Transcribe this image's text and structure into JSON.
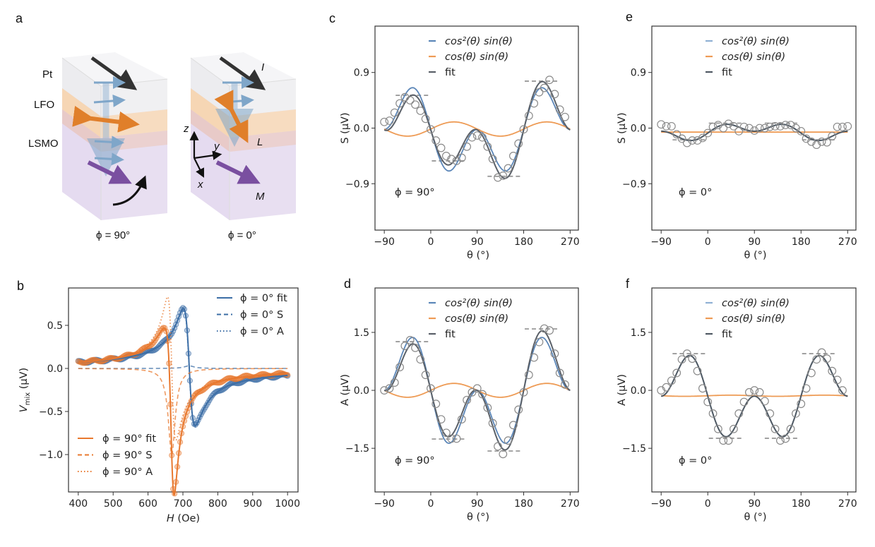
{
  "panel_labels": {
    "a": "a",
    "b": "b",
    "c": "c",
    "d": "d",
    "e": "e",
    "f": "f"
  },
  "schematic": {
    "layers": [
      "Pt",
      "LFO",
      "LSMO"
    ],
    "vector_labels": {
      "current": "I",
      "neel": "L",
      "magnetization": "M"
    },
    "axes_labels": {
      "z": "z",
      "y": "y",
      "x": "x"
    },
    "captions": [
      "ϕ = 90°",
      "ϕ = 0°"
    ],
    "colors": {
      "pt": "#ebebee",
      "lfo": "#f6d6b4",
      "lsmo": "#e2d7ee",
      "current_arrow": "#333333",
      "spin_arrow": "#7fa6c9",
      "neel_arrow": "#e07f2a",
      "magnetization_arrow": "#7a4fa0"
    }
  },
  "chart_data": [
    {
      "panel": "b",
      "type": "line",
      "xlabel": "H (Oe)",
      "xlabel_var": "H",
      "xlabel_unit": "(Oe)",
      "ylabel_var": "V",
      "ylabel_sub": "mix",
      "ylabel_unit": "(μV)",
      "xlim": [
        372,
        1030
      ],
      "ylim": [
        -1.434,
        0.934
      ],
      "xticks": [
        400,
        500,
        600,
        700,
        800,
        900,
        1000
      ],
      "xtick_labels": [
        "400",
        "500",
        "600",
        "700",
        "800",
        "900",
        "1000"
      ],
      "yticks": [
        0.5,
        0.0,
        -0.5,
        -1.0
      ],
      "ytick_labels": [
        "0.5",
        "0.0",
        "−0.5",
        "−1.0"
      ],
      "grid": false,
      "data_h_range": [
        400,
        1000
      ],
      "lineshapes": [
        {
          "phi": "0°",
          "resonance_field": 718,
          "linewidth": 17,
          "symmetric_amplitude": 0.03,
          "antisymmetric_amplitude": -1.36,
          "color": "#3c6ea6"
        },
        {
          "phi": "90°",
          "resonance_field": 668,
          "linewidth": 12,
          "symmetric_amplitude": -1.0,
          "antisymmetric_amplitude": -1.66,
          "color": "#e8782e"
        }
      ],
      "legends": [
        {
          "placement": "top-right",
          "entries": [
            {
              "label": "ϕ = 0° fit",
              "style": "solid",
              "series": 0,
              "part": "fit"
            },
            {
              "label": "ϕ = 0° S",
              "style": "dashed",
              "series": 0,
              "part": "S"
            },
            {
              "label": "ϕ = 0° A",
              "style": "dotted",
              "series": 0,
              "part": "A"
            }
          ]
        },
        {
          "placement": "bottom-left",
          "entries": [
            {
              "label": "ϕ = 90° fit",
              "style": "solid",
              "series": 1,
              "part": "fit"
            },
            {
              "label": "ϕ = 90° S",
              "style": "dashed",
              "series": 1,
              "part": "S"
            },
            {
              "label": "ϕ = 90° A",
              "style": "dotted",
              "series": 1,
              "part": "A"
            }
          ]
        }
      ]
    },
    {
      "panel": "c",
      "type": "line",
      "xlabel": "θ (°)",
      "ylabel": "S (μV)",
      "ylabel_var": "S",
      "annotation": "ϕ = 90°",
      "xlim": [
        -108,
        286
      ],
      "ylim": [
        -1.65,
        1.65
      ],
      "xticks": [
        -90,
        0,
        90,
        180,
        270
      ],
      "xtick_labels": [
        "−90",
        "0",
        "90",
        "180",
        "270"
      ],
      "yticks": [
        0.9,
        0.0,
        -0.9
      ],
      "ytick_labels": [
        "0.9",
        "0.0",
        "−0.9"
      ],
      "legend_placement": "top-center",
      "series": [
        {
          "name": "cos²(θ) sin(θ)",
          "color": "#5b86b8",
          "terms": {
            "cos2sin": -1.75,
            "cossin": 0,
            "cos2": 0,
            "const": -0.02
          }
        },
        {
          "name": "cos(θ) sin(θ)",
          "color": "#ee9b55",
          "terms": {
            "cos2sin": 0,
            "cossin": 0.23,
            "cos2": 0,
            "const": -0.015
          }
        },
        {
          "name": "fit",
          "color": "#5a6068",
          "terms": {
            "cos2sin": -1.75,
            "cossin": 0.23,
            "cos2": 0,
            "const": -0.03
          }
        }
      ],
      "levels": [
        {
          "value": 0.53,
          "from": -68,
          "to": -2
        },
        {
          "value": -0.53,
          "from": 2,
          "to": 70
        },
        {
          "value": -0.78,
          "from": 110,
          "to": 178
        },
        {
          "value": 0.76,
          "from": 182,
          "to": 250
        }
      ],
      "points": {
        "theta": [
          -90,
          -80,
          -70,
          -60,
          -50,
          -40,
          -30,
          -20,
          -10,
          0,
          10,
          20,
          30,
          40,
          50,
          60,
          70,
          80,
          90,
          100,
          110,
          120,
          130,
          140,
          150,
          160,
          170,
          180,
          190,
          200,
          210,
          220,
          230,
          240,
          250,
          260
        ],
        "values": [
          0.1,
          0.12,
          0.25,
          0.4,
          0.5,
          0.45,
          0.38,
          0.28,
          0.15,
          -0.02,
          -0.2,
          -0.32,
          -0.45,
          -0.5,
          -0.53,
          -0.48,
          -0.3,
          -0.15,
          -0.12,
          -0.15,
          -0.3,
          -0.5,
          -0.8,
          -0.77,
          -0.65,
          -0.45,
          -0.25,
          -0.02,
          0.2,
          0.4,
          0.58,
          0.65,
          0.78,
          0.55,
          0.3,
          0.18
        ]
      }
    },
    {
      "panel": "d",
      "type": "line",
      "xlabel": "θ (°)",
      "ylabel": "A (μV)",
      "ylabel_var": "A",
      "annotation": "ϕ = 90°",
      "xlim": [
        -108,
        286
      ],
      "ylim": [
        -2.63,
        2.65
      ],
      "xticks": [
        -90,
        0,
        90,
        180,
        270
      ],
      "xtick_labels": [
        "−90",
        "0",
        "90",
        "180",
        "270"
      ],
      "yticks": [
        1.5,
        0.0,
        -1.5
      ],
      "ytick_labels": [
        "1.5",
        "0.0",
        "−1.5"
      ],
      "legend_placement": "top-center",
      "series": [
        {
          "name": "cos²(θ) sin(θ)",
          "color": "#5b86b8",
          "terms": {
            "cos2sin": -3.56,
            "cossin": 0,
            "cos2": 0,
            "const": 0
          }
        },
        {
          "name": "cos(θ) sin(θ)",
          "color": "#ee9b55",
          "terms": {
            "cos2sin": 0,
            "cossin": 0.36,
            "cos2": 0,
            "const": 0
          }
        },
        {
          "name": "fit",
          "color": "#5a6068",
          "terms": {
            "cos2sin": -3.56,
            "cossin": 0.36,
            "cos2": 0,
            "const": 0
          }
        }
      ],
      "levels": [
        {
          "value": 1.26,
          "from": -68,
          "to": -2
        },
        {
          "value": -1.26,
          "from": 2,
          "to": 70
        },
        {
          "value": -1.57,
          "from": 110,
          "to": 178
        },
        {
          "value": 1.59,
          "from": 182,
          "to": 250
        }
      ],
      "points": {
        "theta": [
          -90,
          -80,
          -70,
          -60,
          -50,
          -40,
          -30,
          -20,
          -10,
          0,
          10,
          20,
          30,
          40,
          50,
          60,
          70,
          80,
          90,
          100,
          110,
          120,
          130,
          140,
          150,
          160,
          170,
          180,
          190,
          200,
          210,
          220,
          230,
          240,
          250,
          260
        ],
        "values": [
          0,
          0.05,
          0.2,
          0.6,
          1.15,
          1.3,
          1.1,
          0.8,
          0.4,
          0.05,
          -0.35,
          -0.75,
          -1.1,
          -1.25,
          -1.25,
          -0.75,
          -0.25,
          -0.05,
          0.05,
          -0.1,
          -0.45,
          -0.85,
          -1.45,
          -1.65,
          -1.3,
          -0.9,
          -0.5,
          -0.05,
          0.4,
          0.85,
          1.25,
          1.6,
          1.55,
          0.95,
          0.45,
          0.15
        ]
      }
    },
    {
      "panel": "e",
      "type": "line",
      "xlabel": "θ (°)",
      "ylabel": "S (μV)",
      "ylabel_var": "S",
      "annotation": "ϕ = 0°",
      "xlim": [
        -108,
        286
      ],
      "ylim": [
        -1.65,
        1.65
      ],
      "xticks": [
        -90,
        0,
        90,
        180,
        270
      ],
      "xtick_labels": [
        "−90",
        "0",
        "90",
        "180",
        "270"
      ],
      "yticks": [
        0.9,
        0.0,
        -0.9
      ],
      "ytick_labels": [
        "0.9",
        "0.0",
        "−0.9"
      ],
      "legend_placement": "top-center",
      "series": [
        {
          "name": "cos²(θ) sin(θ)",
          "color": "#8fb0d4",
          "terms": {
            "cos2sin": 0.34,
            "cossin": 0,
            "cos2": -0.03,
            "const": -0.05
          }
        },
        {
          "name": "cos(θ) sin(θ)",
          "color": "#ee9b55",
          "terms": {
            "cos2sin": 0,
            "cossin": 0,
            "cos2": 0,
            "const": -0.065
          }
        },
        {
          "name": "fit",
          "color": "#4f5963",
          "terms": {
            "cos2sin": 0.34,
            "cossin": 0,
            "cos2": -0.03,
            "const": -0.05
          }
        }
      ],
      "levels": [
        {
          "value": -0.19,
          "from": -68,
          "to": -2
        },
        {
          "value": 0.08,
          "from": 2,
          "to": 70
        },
        {
          "value": 0.08,
          "from": 110,
          "to": 178
        },
        {
          "value": -0.19,
          "from": 182,
          "to": 250
        }
      ],
      "points": {
        "theta": [
          -90,
          -80,
          -70,
          -60,
          -50,
          -40,
          -30,
          -20,
          -10,
          0,
          10,
          20,
          30,
          40,
          50,
          60,
          70,
          80,
          90,
          100,
          110,
          120,
          130,
          140,
          150,
          160,
          170,
          180,
          190,
          200,
          210,
          220,
          230,
          240,
          250,
          260,
          270
        ],
        "values": [
          0.06,
          0.03,
          0.03,
          -0.1,
          -0.17,
          -0.24,
          -0.2,
          -0.2,
          -0.16,
          -0.08,
          0.02,
          0.05,
          0.0,
          0.07,
          0.03,
          -0.05,
          0.02,
          0.0,
          -0.04,
          0.0,
          0.0,
          0.02,
          0.03,
          0.03,
          0.05,
          0.05,
          0.0,
          -0.05,
          -0.17,
          -0.22,
          -0.27,
          -0.22,
          -0.23,
          -0.13,
          0.02,
          0.02,
          0.03
        ]
      }
    },
    {
      "panel": "f",
      "type": "line",
      "xlabel": "θ (°)",
      "ylabel": "A (μV)",
      "ylabel_var": "A",
      "annotation": "ϕ = 0°",
      "xlim": [
        -108,
        286
      ],
      "ylim": [
        -2.63,
        2.65
      ],
      "xticks": [
        -90,
        0,
        90,
        180,
        270
      ],
      "xtick_labels": [
        "−90",
        "0",
        "90",
        "180",
        "270"
      ],
      "yticks": [
        1.5,
        0.0,
        -1.5
      ],
      "ytick_labels": [
        "1.5",
        "0.0",
        "−1.5"
      ],
      "legend_placement": "top-center",
      "series": [
        {
          "name": "cos²(θ) sin(θ)",
          "color": "#8fb0d4",
          "terms": {
            "cos2sin": -2.73,
            "cossin": 0,
            "cos2": 0,
            "const": -0.15
          }
        },
        {
          "name": "cos(θ) sin(θ)",
          "color": "#ee9b55",
          "terms": {
            "cos2sin": 0,
            "cossin": 0.03,
            "cos2": 0,
            "const": -0.14
          }
        },
        {
          "name": "fit",
          "color": "#4f5963",
          "terms": {
            "cos2sin": -2.73,
            "cossin": 0,
            "cos2": 0,
            "const": -0.15
          }
        }
      ],
      "levels": [
        {
          "value": 0.95,
          "from": -68,
          "to": -2
        },
        {
          "value": -1.24,
          "from": 2,
          "to": 70
        },
        {
          "value": -1.24,
          "from": 110,
          "to": 178
        },
        {
          "value": 0.95,
          "from": 182,
          "to": 250
        }
      ],
      "points": {
        "theta": [
          -90,
          -80,
          -70,
          -60,
          -50,
          -40,
          -30,
          -20,
          -10,
          0,
          10,
          20,
          30,
          40,
          50,
          60,
          70,
          80,
          90,
          100,
          110,
          120,
          130,
          140,
          150,
          160,
          170,
          180,
          190,
          200,
          210,
          220,
          230,
          240,
          250,
          260
        ],
        "values": [
          0,
          0.08,
          0.25,
          0.45,
          0.8,
          0.95,
          0.82,
          0.5,
          0.05,
          -0.3,
          -0.6,
          -1.0,
          -1.3,
          -1.3,
          -1.0,
          -0.6,
          -0.3,
          -0.05,
          0.0,
          -0.05,
          -0.28,
          -0.6,
          -1.0,
          -1.3,
          -1.25,
          -1.0,
          -0.6,
          -0.35,
          0.05,
          0.45,
          0.8,
          0.98,
          0.82,
          0.5,
          0.27,
          0.0
        ]
      }
    }
  ]
}
